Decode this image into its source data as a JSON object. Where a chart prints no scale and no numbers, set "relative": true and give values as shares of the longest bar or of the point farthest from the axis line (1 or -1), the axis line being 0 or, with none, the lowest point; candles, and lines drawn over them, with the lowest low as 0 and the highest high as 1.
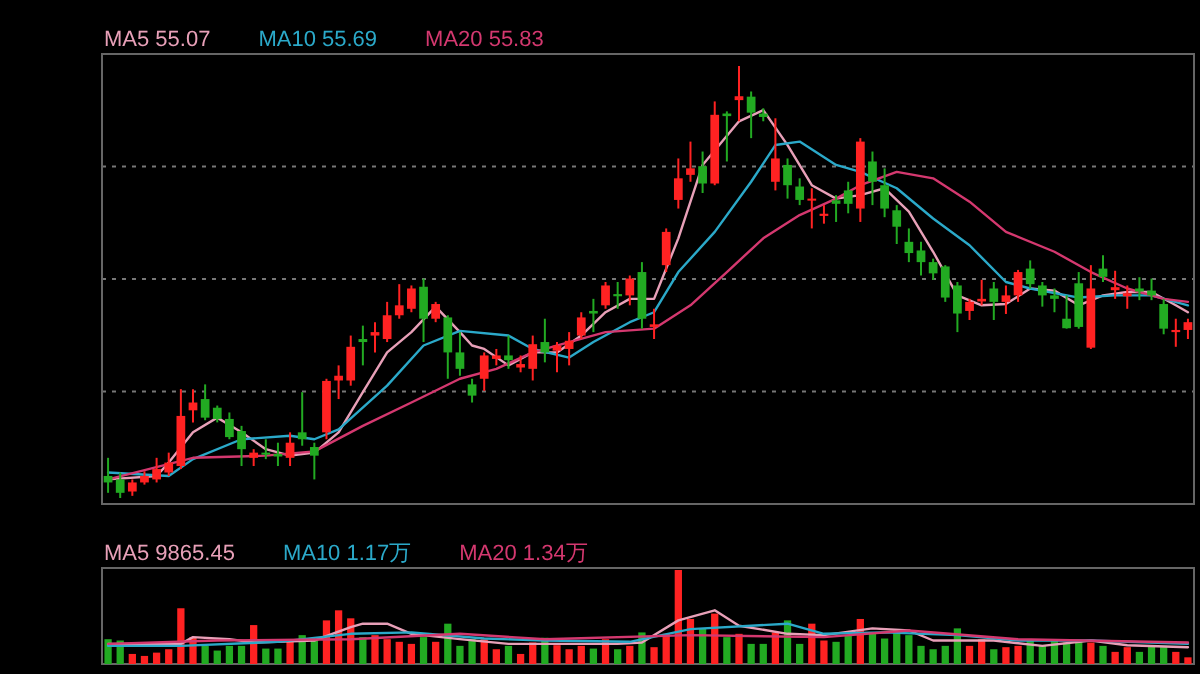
{
  "chart_data": [
    {
      "type": "candlestick",
      "relative": true,
      "grid": "y",
      "legend": "top",
      "categories": [
        null,
        null,
        null,
        null,
        null,
        null,
        null,
        null,
        null,
        null,
        null,
        null,
        null,
        null,
        null,
        null,
        null,
        null,
        null,
        null,
        null,
        null,
        null,
        null,
        null,
        null,
        null,
        null,
        null,
        null,
        null,
        null,
        null,
        null,
        null,
        null,
        null,
        null,
        null,
        null,
        null,
        null,
        null,
        null,
        null,
        null,
        null,
        null,
        null,
        null,
        null,
        null,
        null,
        null,
        null,
        null,
        null,
        null,
        null,
        null,
        null,
        null,
        null,
        null,
        null,
        null,
        null,
        null,
        null,
        null,
        null,
        null,
        null,
        null,
        null,
        null,
        null,
        null,
        null,
        null,
        null,
        null,
        null,
        null,
        null,
        null,
        null,
        null,
        null,
        null
      ],
      "ohlc": [
        [
          0.051,
          0.093,
          0.012,
          0.036
        ],
        [
          0.043,
          0.059,
          0,
          0.012
        ],
        [
          0.015,
          0.043,
          0.005,
          0.036
        ],
        [
          0.036,
          0.062,
          0.031,
          0.051
        ],
        [
          0.043,
          0.093,
          0.036,
          0.067
        ],
        [
          0.059,
          0.105,
          0.051,
          0.082
        ],
        [
          0.074,
          0.252,
          0.067,
          0.19
        ],
        [
          0.203,
          0.252,
          0.175,
          0.221
        ],
        [
          0.229,
          0.263,
          0.18,
          0.186
        ],
        [
          0.209,
          0.214,
          0.175,
          0.183
        ],
        [
          0.183,
          0.198,
          0.136,
          0.141
        ],
        [
          0.155,
          0.167,
          0.074,
          0.113
        ],
        [
          0.093,
          0.113,
          0.074,
          0.105
        ],
        [
          0.105,
          0.136,
          0.09,
          0.101
        ],
        [
          0.102,
          0.128,
          0.074,
          0.096
        ],
        [
          0.093,
          0.152,
          0.074,
          0.128
        ],
        [
          0.152,
          0.245,
          0.121,
          0.136
        ],
        [
          0.118,
          0.128,
          0.043,
          0.098
        ],
        [
          0.152,
          0.276,
          0.136,
          0.271
        ],
        [
          0.272,
          0.307,
          0.229,
          0.283
        ],
        [
          0.272,
          0.376,
          0.26,
          0.35
        ],
        [
          0.368,
          0.399,
          0.307,
          0.361
        ],
        [
          0.376,
          0.407,
          0.337,
          0.384
        ],
        [
          0.368,
          0.454,
          0.361,
          0.423
        ],
        [
          0.423,
          0.495,
          0.415,
          0.446
        ],
        [
          0.438,
          0.492,
          0.43,
          0.485
        ],
        [
          0.489,
          0.508,
          0.361,
          0.415
        ],
        [
          0.415,
          0.454,
          0.407,
          0.449
        ],
        [
          0.418,
          0.423,
          0.276,
          0.337
        ],
        [
          0.337,
          0.384,
          0.283,
          0.299
        ],
        [
          0.263,
          0.276,
          0.221,
          0.237
        ],
        [
          0.276,
          0.337,
          0.248,
          0.33
        ],
        [
          0.322,
          0.345,
          0.307,
          0.33
        ],
        [
          0.33,
          0.376,
          0.299,
          0.319
        ],
        [
          0.302,
          0.33,
          0.291,
          0.31
        ],
        [
          0.299,
          0.376,
          0.272,
          0.356
        ],
        [
          0.361,
          0.415,
          0.314,
          0.337
        ],
        [
          0.341,
          0.361,
          0.291,
          0.353
        ],
        [
          0.345,
          0.384,
          0.307,
          0.364
        ],
        [
          0.376,
          0.43,
          0.368,
          0.418
        ],
        [
          0.433,
          0.461,
          0.384,
          0.427
        ],
        [
          0.446,
          0.5,
          0.438,
          0.492
        ],
        [
          0.472,
          0.5,
          0.438,
          0.467
        ],
        [
          0.469,
          0.515,
          0.446,
          0.508
        ],
        [
          0.523,
          0.546,
          0.392,
          0.415
        ],
        [
          0.396,
          0.438,
          0.368,
          0.402
        ],
        [
          0.539,
          0.624,
          0.523,
          0.616
        ],
        [
          0.69,
          0.786,
          0.67,
          0.74
        ],
        [
          0.748,
          0.825,
          0.732,
          0.763
        ],
        [
          0.768,
          0.802,
          0.706,
          0.728
        ],
        [
          0.728,
          0.918,
          0.724,
          0.887
        ],
        [
          0.89,
          0.895,
          0.779,
          0.884
        ],
        [
          0.921,
          1,
          0.872,
          0.93
        ],
        [
          0.929,
          0.941,
          0.833,
          0.892
        ],
        [
          0.89,
          0.902,
          0.872,
          0.882
        ],
        [
          0.732,
          0.879,
          0.712,
          0.786
        ],
        [
          0.771,
          0.786,
          0.693,
          0.724
        ],
        [
          0.721,
          0.74,
          0.678,
          0.69
        ],
        [
          0.689,
          0.717,
          0.624,
          0.693
        ],
        [
          0.653,
          0.678,
          0.635,
          0.658
        ],
        [
          0.689,
          0.701,
          0.639,
          0.681
        ],
        [
          0.712,
          0.732,
          0.659,
          0.681
        ],
        [
          0.67,
          0.833,
          0.639,
          0.825
        ],
        [
          0.779,
          0.802,
          0.678,
          0.732
        ],
        [
          0.724,
          0.763,
          0.65,
          0.67
        ],
        [
          0.666,
          0.678,
          0.588,
          0.628
        ],
        [
          0.593,
          0.624,
          0.546,
          0.567
        ],
        [
          0.573,
          0.593,
          0.515,
          0.546
        ],
        [
          0.546,
          0.554,
          0.505,
          0.52
        ],
        [
          0.536,
          0.539,
          0.454,
          0.464
        ],
        [
          0.492,
          0.5,
          0.384,
          0.427
        ],
        [
          0.433,
          0.461,
          0.412,
          0.454
        ],
        [
          0.455,
          0.505,
          0.446,
          0.461
        ],
        [
          0.485,
          0.5,
          0.412,
          0.454
        ],
        [
          0.454,
          0.492,
          0.426,
          0.469
        ],
        [
          0.469,
          0.528,
          0.454,
          0.523
        ],
        [
          0.531,
          0.55,
          0.485,
          0.495
        ],
        [
          0.492,
          0.5,
          0.443,
          0.469
        ],
        [
          0.469,
          0.485,
          0.43,
          0.461
        ],
        [
          0.415,
          0.469,
          0.392,
          0.393
        ],
        [
          0.497,
          0.523,
          0.392,
          0.396
        ],
        [
          0.348,
          0.539,
          0.345,
          0.485
        ],
        [
          0.531,
          0.562,
          0.5,
          0.512
        ],
        [
          0.481,
          0.526,
          0.461,
          0.488
        ],
        [
          0.467,
          0.492,
          0.438,
          0.474
        ],
        [
          0.485,
          0.511,
          0.458,
          0.478
        ],
        [
          0.48,
          0.508,
          0.458,
          0.469
        ],
        [
          0.449,
          0.461,
          0.379,
          0.392
        ],
        [
          0.384,
          0.415,
          0.35,
          0.389
        ],
        [
          0.389,
          0.415,
          0.368,
          0.407
        ]
      ],
      "colors": [
        "#22aa22",
        "#22aa22",
        "#ff2222",
        "#ff2222",
        "#ff2222",
        "#ff2222",
        "#ff2222",
        "#ff2222",
        "#22aa22",
        "#22aa22",
        "#22aa22",
        "#22aa22",
        "#ff2222",
        "#22aa22",
        "#22aa22",
        "#ff2222",
        "#22aa22",
        "#22aa22",
        "#ff2222",
        "#ff2222",
        "#ff2222",
        "#22aa22",
        "#ff2222",
        "#ff2222",
        "#ff2222",
        "#ff2222",
        "#22aa22",
        "#ff2222",
        "#22aa22",
        "#22aa22",
        "#22aa22",
        "#ff2222",
        "#ff2222",
        "#22aa22",
        "#ff2222",
        "#ff2222",
        "#22aa22",
        "#ff2222",
        "#ff2222",
        "#ff2222",
        "#22aa22",
        "#ff2222",
        "#22aa22",
        "#ff2222",
        "#22aa22",
        "#ff2222",
        "#ff2222",
        "#ff2222",
        "#ff2222",
        "#22aa22",
        "#ff2222",
        "#22aa22",
        "#ff2222",
        "#22aa22",
        "#22aa22",
        "#ff2222",
        "#22aa22",
        "#22aa22",
        "#ff2222",
        "#ff2222",
        "#22aa22",
        "#22aa22",
        "#ff2222",
        "#22aa22",
        "#22aa22",
        "#22aa22",
        "#22aa22",
        "#22aa22",
        "#22aa22",
        "#22aa22",
        "#22aa22",
        "#ff2222",
        "#ff2222",
        "#22aa22",
        "#ff2222",
        "#ff2222",
        "#22aa22",
        "#22aa22",
        "#22aa22",
        "#22aa22",
        "#22aa22",
        "#ff2222",
        "#22aa22",
        "#ff2222",
        "#ff2222",
        "#22aa22",
        "#22aa22",
        "#22aa22",
        "#ff2222",
        "#ff2222"
      ],
      "series": [
        {
          "name": "MA5 55.07",
          "type": "line",
          "color": "#e8a0b8",
          "values": [
            0.043,
            null,
            null,
            null,
            0.051,
            0.082,
            null,
            0.152,
            null,
            0.186,
            null,
            0.152,
            null,
            0.113,
            null,
            0.098,
            null,
            0.105,
            null,
            0.152,
            null,
            0.245,
            null,
            0.337,
            null,
            0.384,
            null,
            0.443,
            null,
            0.384,
            0.353,
            0.345,
            null,
            0.307,
            null,
            0.337,
            null,
            0.337,
            null,
            0.376,
            null,
            0.43,
            null,
            0.461,
            null,
            0.461,
            null,
            0.601,
            null,
            0.771,
            null,
            null,
            0.872,
            null,
            0.898,
            null,
            0.817,
            null,
            0.724,
            null,
            0.693,
            null,
            0.701,
            null,
            0.717,
            null,
            0.663,
            null,
            0.57,
            null,
            0.469,
            null,
            0.446,
            null,
            0.449,
            null,
            0.485,
            null,
            0.48,
            null,
            0.446,
            null,
            0.469,
            null,
            0.477,
            null,
            0.477,
            null,
            0.446,
            0.43
          ]
        },
        {
          "name": "MA10 55.69",
          "type": "line",
          "color": "#2ba9c9",
          "values": [
            0.059,
            null,
            null,
            null,
            null,
            0.051,
            null,
            0.09,
            null,
            null,
            null,
            0.136,
            null,
            null,
            null,
            0.144,
            null,
            0.136,
            null,
            0.159,
            null,
            null,
            null,
            0.26,
            null,
            null,
            0.353,
            null,
            null,
            0.387,
            null,
            null,
            null,
            0.376,
            null,
            0.345,
            null,
            null,
            0.325,
            null,
            0.361,
            null,
            null,
            0.407,
            null,
            0.43,
            null,
            0.523,
            null,
            null,
            0.616,
            null,
            null,
            0.732,
            null,
            0.817,
            null,
            0.825,
            null,
            null,
            0.771,
            null,
            0.755,
            null,
            null,
            0.717,
            null,
            null,
            0.647,
            null,
            null,
            0.585,
            null,
            null,
            0.5,
            null,
            0.485,
            null,
            null,
            null,
            0.464,
            null,
            null,
            0.469,
            null,
            null,
            0.469,
            null,
            null,
            0.446
          ]
        },
        {
          "name": "MA20 55.83",
          "type": "line",
          "color": "#d4386f",
          "values": [
            0.043,
            null,
            null,
            null,
            null,
            null,
            null,
            0.093,
            null,
            null,
            null,
            null,
            null,
            0.098,
            null,
            null,
            null,
            0.108,
            null,
            null,
            null,
            0.167,
            null,
            null,
            null,
            0.221,
            null,
            null,
            null,
            0.276,
            null,
            null,
            0.299,
            null,
            null,
            0.337,
            null,
            null,
            0.361,
            null,
            null,
            0.384,
            null,
            null,
            null,
            0.392,
            null,
            null,
            0.446,
            null,
            null,
            0.523,
            null,
            null,
            0.601,
            null,
            null,
            0.655,
            null,
            null,
            0.693,
            null,
            0.724,
            null,
            null,
            0.755,
            null,
            null,
            0.74,
            null,
            null,
            0.686,
            null,
            null,
            0.616,
            null,
            null,
            null,
            0.57,
            null,
            null,
            0.523,
            null,
            null,
            0.485,
            null,
            null,
            0.461,
            null,
            0.454
          ]
        }
      ]
    },
    {
      "type": "bar",
      "relative": true,
      "legend": "top",
      "categories": [
        null,
        null,
        null,
        null,
        null,
        null,
        null,
        null,
        null,
        null,
        null,
        null,
        null,
        null,
        null,
        null,
        null,
        null,
        null,
        null,
        null,
        null,
        null,
        null,
        null,
        null,
        null,
        null,
        null,
        null,
        null,
        null,
        null,
        null,
        null,
        null,
        null,
        null,
        null,
        null,
        null,
        null,
        null,
        null,
        null,
        null,
        null,
        null,
        null,
        null,
        null,
        null,
        null,
        null,
        null,
        null,
        null,
        null,
        null,
        null,
        null,
        null,
        null,
        null,
        null,
        null,
        null,
        null,
        null,
        null,
        null,
        null,
        null,
        null,
        null,
        null,
        null,
        null,
        null,
        null,
        null,
        null,
        null,
        null,
        null,
        null,
        null,
        null,
        null,
        null
      ],
      "series": [
        {
          "type": "bar",
          "colors": [
            "#22aa22",
            "#22aa22",
            "#ff2222",
            "#ff2222",
            "#ff2222",
            "#ff2222",
            "#ff2222",
            "#ff2222",
            "#22aa22",
            "#22aa22",
            "#22aa22",
            "#22aa22",
            "#ff2222",
            "#22aa22",
            "#22aa22",
            "#ff2222",
            "#22aa22",
            "#22aa22",
            "#ff2222",
            "#ff2222",
            "#ff2222",
            "#22aa22",
            "#ff2222",
            "#ff2222",
            "#ff2222",
            "#ff2222",
            "#22aa22",
            "#ff2222",
            "#22aa22",
            "#22aa22",
            "#22aa22",
            "#ff2222",
            "#ff2222",
            "#22aa22",
            "#ff2222",
            "#ff2222",
            "#22aa22",
            "#ff2222",
            "#ff2222",
            "#ff2222",
            "#22aa22",
            "#ff2222",
            "#22aa22",
            "#ff2222",
            "#22aa22",
            "#ff2222",
            "#ff2222",
            "#ff2222",
            "#ff2222",
            "#22aa22",
            "#ff2222",
            "#22aa22",
            "#ff2222",
            "#22aa22",
            "#22aa22",
            "#ff2222",
            "#22aa22",
            "#22aa22",
            "#ff2222",
            "#ff2222",
            "#22aa22",
            "#22aa22",
            "#ff2222",
            "#22aa22",
            "#22aa22",
            "#22aa22",
            "#22aa22",
            "#22aa22",
            "#22aa22",
            "#22aa22",
            "#22aa22",
            "#ff2222",
            "#ff2222",
            "#22aa22",
            "#ff2222",
            "#ff2222",
            "#22aa22",
            "#22aa22",
            "#22aa22",
            "#22aa22",
            "#22aa22",
            "#ff2222",
            "#22aa22",
            "#ff2222",
            "#ff2222",
            "#22aa22",
            "#22aa22",
            "#22aa22",
            "#ff2222",
            "#ff2222"
          ],
          "values": [
            0.264,
            0.25,
            0.107,
            0.086,
            0.121,
            0.157,
            0.593,
            0.286,
            0.193,
            0.143,
            0.193,
            0.193,
            0.414,
            0.164,
            0.164,
            0.264,
            0.307,
            0.25,
            0.464,
            0.571,
            0.486,
            0.286,
            0.307,
            0.264,
            0.236,
            0.214,
            0.286,
            0.236,
            0.429,
            0.193,
            0.264,
            0.264,
            0.157,
            0.193,
            0.107,
            0.229,
            0.279,
            0.2,
            0.157,
            0.193,
            0.164,
            0.264,
            0.157,
            0.193,
            0.336,
            0.179,
            0.321,
            1,
            0.479,
            0.379,
            0.536,
            0.286,
            0.321,
            0.214,
            0.214,
            0.336,
            0.464,
            0.214,
            0.429,
            0.25,
            0.236,
            0.307,
            0.479,
            0.336,
            0.271,
            0.357,
            0.307,
            0.193,
            0.157,
            0.193,
            0.379,
            0.193,
            0.264,
            0.157,
            0.179,
            0.193,
            0.25,
            0.193,
            0.25,
            0.229,
            0.25,
            0.229,
            0.193,
            0.129,
            0.179,
            0.129,
            0.193,
            0.193,
            0.129,
            0.071
          ]
        },
        {
          "name": "MA5 9865.45",
          "type": "line",
          "color": "#e8a0b8",
          "values": [
            0.214,
            null,
            null,
            null,
            null,
            null,
            0.214,
            0.286,
            null,
            null,
            0.264,
            null,
            0.229,
            null,
            null,
            null,
            null,
            0.25,
            null,
            null,
            0.393,
            0.429,
            null,
            0.429,
            null,
            0.321,
            null,
            null,
            null,
            0.264,
            null,
            null,
            null,
            0.214,
            null,
            null,
            0.214,
            null,
            null,
            null,
            null,
            null,
            0.214,
            null,
            0.229,
            null,
            null,
            0.464,
            null,
            null,
            0.571,
            null,
            0.407,
            null,
            null,
            null,
            0.321,
            null,
            null,
            0.307,
            null,
            null,
            null,
            0.379,
            null,
            null,
            0.357,
            null,
            0.25,
            null,
            null,
            null,
            null,
            0.25,
            null,
            null,
            null,
            0.193,
            null,
            null,
            null,
            0.25,
            null,
            null,
            0.2,
            null,
            null,
            null,
            null,
            0.179
          ]
        },
        {
          "name": "MA10 1.17万",
          "type": "line",
          "color": "#2ba9c9",
          "values": [
            0.193,
            null,
            null,
            null,
            null,
            null,
            0.193,
            null,
            null,
            null,
            null,
            null,
            null,
            null,
            0.236,
            null,
            null,
            null,
            null,
            null,
            0.321,
            null,
            null,
            null,
            null,
            0.336,
            null,
            null,
            null,
            null,
            null,
            0.271,
            null,
            null,
            null,
            null,
            0.25,
            null,
            null,
            null,
            null,
            null,
            null,
            0.236,
            null,
            null,
            null,
            null,
            0.371,
            null,
            null,
            null,
            null,
            null,
            null,
            null,
            0.429,
            null,
            null,
            0.321,
            null,
            null,
            null,
            null,
            0.336,
            null,
            null,
            null,
            null,
            null,
            0.307,
            null,
            null,
            null,
            null,
            0.25,
            null,
            null,
            null,
            null,
            null,
            0.25,
            null,
            null,
            null,
            null,
            null,
            null,
            null,
            0.214
          ]
        },
        {
          "name": "MA20 1.34万",
          "type": "line",
          "color": "#d4386f",
          "values": [
            0.214,
            null,
            null,
            null,
            null,
            null,
            null,
            null,
            null,
            0.25,
            null,
            null,
            null,
            null,
            null,
            null,
            null,
            null,
            null,
            null,
            0.264,
            null,
            null,
            null,
            null,
            null,
            null,
            null,
            null,
            0.321,
            null,
            null,
            null,
            null,
            null,
            null,
            0.264,
            null,
            null,
            null,
            null,
            null,
            null,
            null,
            null,
            null,
            null,
            null,
            0.307,
            null,
            null,
            null,
            null,
            null,
            null,
            null,
            null,
            null,
            null,
            0.286,
            null,
            null,
            null,
            null,
            null,
            null,
            0.357,
            null,
            null,
            null,
            null,
            null,
            null,
            null,
            null,
            0.264,
            null,
            null,
            null,
            null,
            null,
            null,
            null,
            null,
            null,
            null,
            null,
            null,
            null,
            0.229
          ]
        }
      ]
    }
  ]
}
